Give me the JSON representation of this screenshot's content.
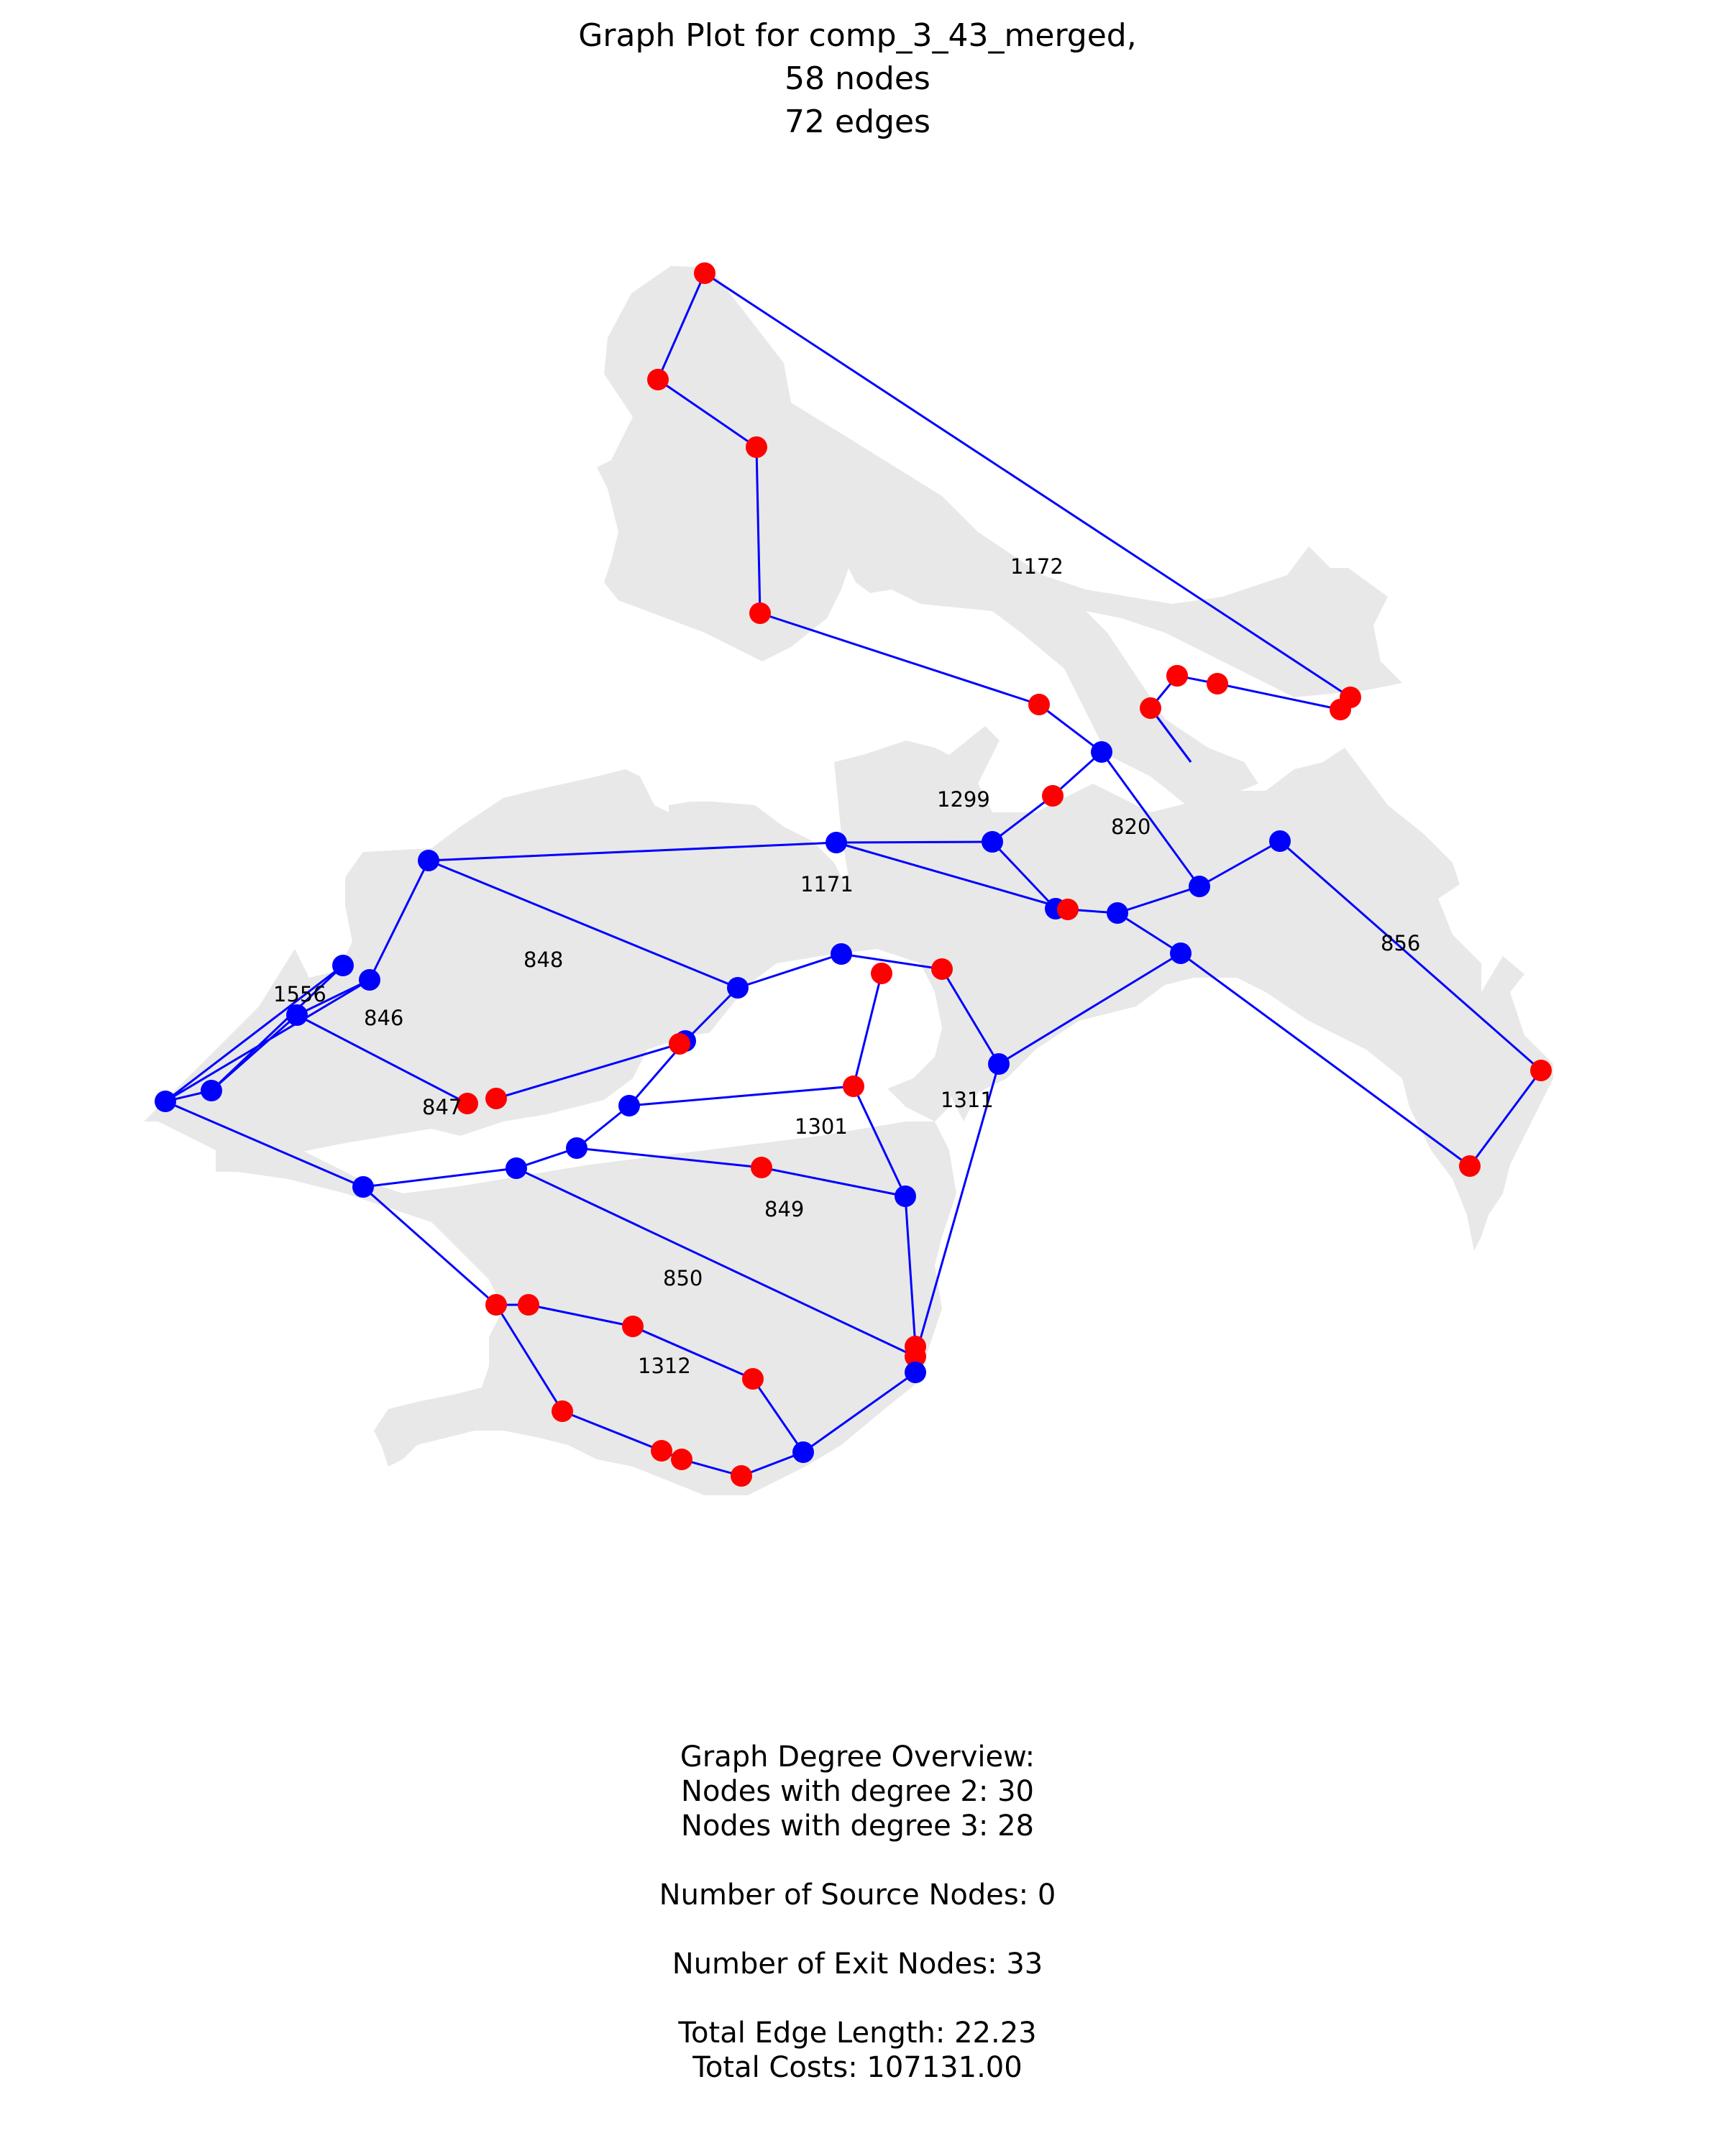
{
  "title": {
    "line1": "Graph Plot for comp_3_43_merged,",
    "line2": "58 nodes",
    "line3": "72 edges"
  },
  "colors": {
    "region_fill": "#e8e8e8",
    "edge": "#0000ff",
    "junction_node": "#0000ff",
    "exit_node": "#ff0000",
    "background": "#ffffff"
  },
  "region_labels": [
    "1172",
    "1299",
    "820",
    "1171",
    "856",
    "848",
    "1556",
    "846",
    "847",
    "1311",
    "1301",
    "849",
    "850",
    "1312"
  ],
  "stats": {
    "heading": "Graph Degree Overview:",
    "degree2": "Nodes with degree 2: 30",
    "degree3": "Nodes with degree 3: 28",
    "sources": "Number of Source Nodes: 0",
    "exits": "Number of Exit Nodes: 33",
    "edge_length": "Total Edge Length: 22.23",
    "costs": "Total Costs: 107131.00"
  }
}
